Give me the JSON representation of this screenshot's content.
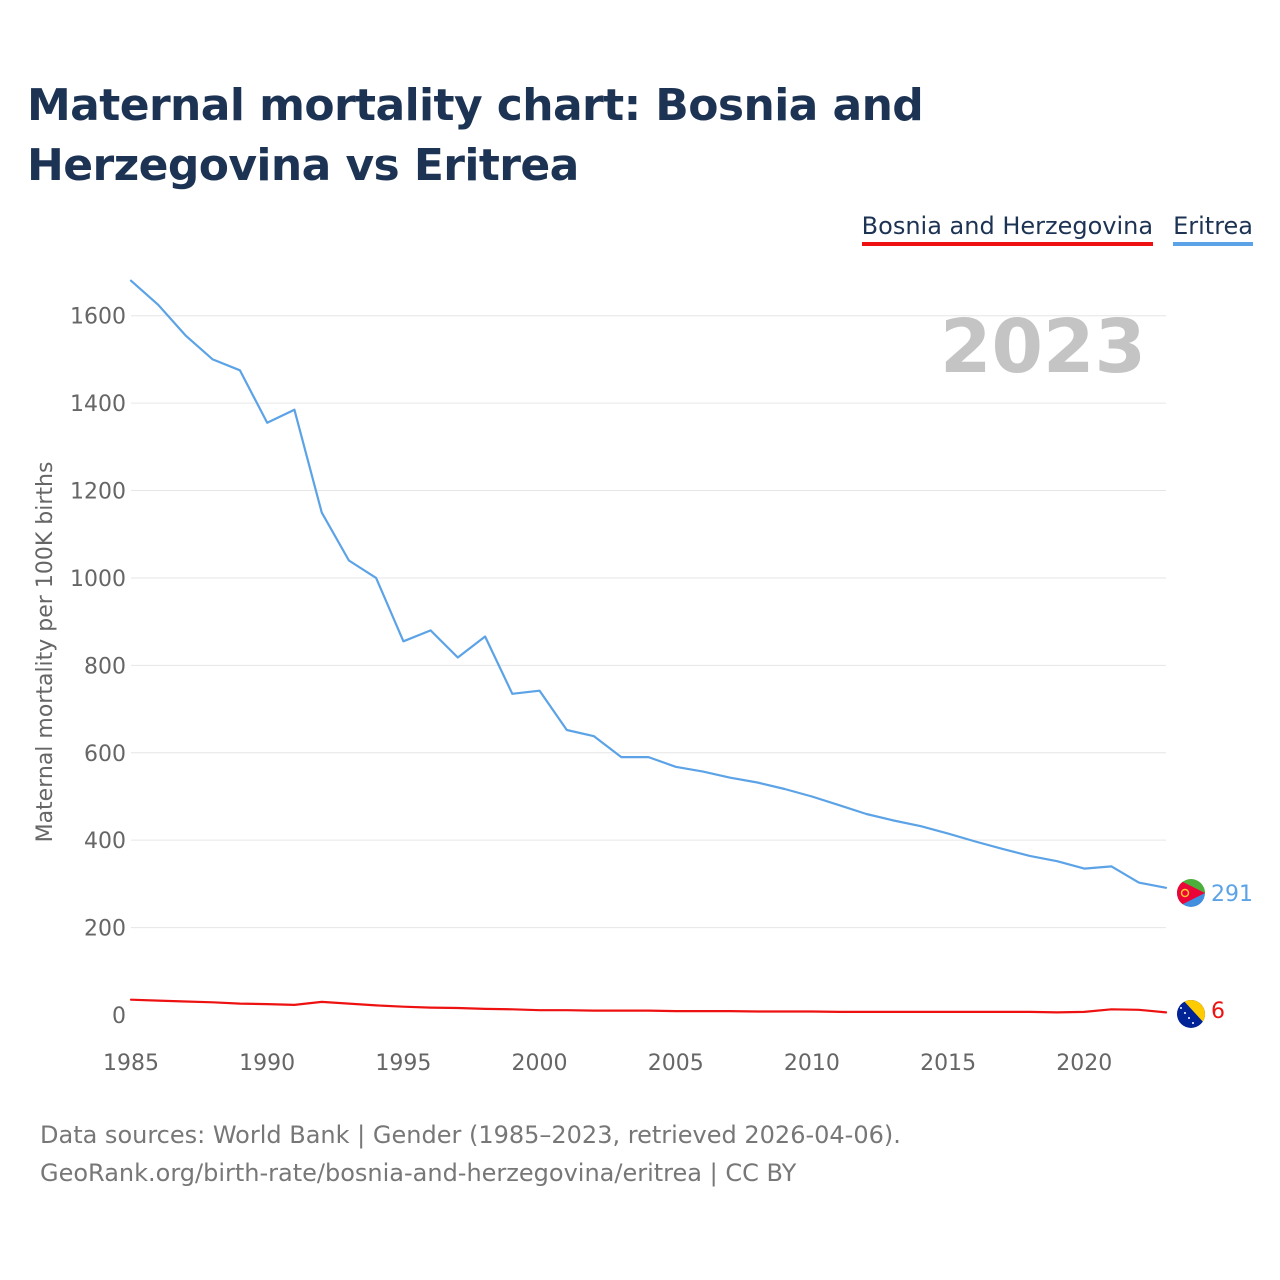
{
  "page": {
    "title": "Maternal mortality chart: Bosnia and Herzegovina vs Eritrea",
    "footer_sources": "Data sources: World Bank | Gender (1985–2023, retrieved 2026-04-06).",
    "footer_link": "GeoRank.org/birth-rate/bosnia-and-herzegovina/eritrea | CC BY"
  },
  "chart_data": {
    "type": "line",
    "title": "Maternal mortality chart: Bosnia and Herzegovina vs Eritrea",
    "year_label": "2023",
    "xlabel": "",
    "ylabel": "Maternal mortality per 100K births",
    "xlim": [
      1985,
      2023
    ],
    "ylim": [
      0,
      1700
    ],
    "x_ticks": [
      1985,
      1990,
      1995,
      2000,
      2005,
      2010,
      2015,
      2020
    ],
    "y_ticks": [
      0,
      200,
      400,
      600,
      800,
      1000,
      1200,
      1400,
      1600
    ],
    "grid": true,
    "legend_position": "top-right",
    "x": [
      1985,
      1986,
      1987,
      1988,
      1989,
      1990,
      1991,
      1992,
      1993,
      1994,
      1995,
      1996,
      1997,
      1998,
      1999,
      2000,
      2001,
      2002,
      2003,
      2004,
      2005,
      2006,
      2007,
      2008,
      2009,
      2010,
      2011,
      2012,
      2013,
      2014,
      2015,
      2016,
      2017,
      2018,
      2019,
      2020,
      2021,
      2022,
      2023
    ],
    "series": [
      {
        "name": "Bosnia and Herzegovina",
        "color": "#ee1111",
        "end_label": "6",
        "flag": "bosnia-and-herzegovina-flag-icon",
        "values": [
          35,
          33,
          31,
          29,
          26,
          25,
          23,
          30,
          26,
          22,
          19,
          17,
          16,
          14,
          13,
          11,
          11,
          10,
          10,
          10,
          9,
          9,
          9,
          8,
          8,
          8,
          7,
          7,
          7,
          7,
          7,
          7,
          7,
          7,
          6,
          7,
          13,
          12,
          6
        ]
      },
      {
        "name": "Eritrea",
        "color": "#5ba3e6",
        "end_label": "291",
        "flag": "eritrea-flag-icon",
        "values": [
          1680,
          1625,
          1555,
          1500,
          1475,
          1355,
          1385,
          1150,
          1040,
          1000,
          855,
          880,
          818,
          866,
          735,
          742,
          652,
          638,
          590,
          590,
          568,
          557,
          543,
          532,
          517,
          500,
          480,
          460,
          445,
          432,
          415,
          397,
          380,
          364,
          352,
          335,
          340,
          303,
          291
        ]
      }
    ]
  }
}
